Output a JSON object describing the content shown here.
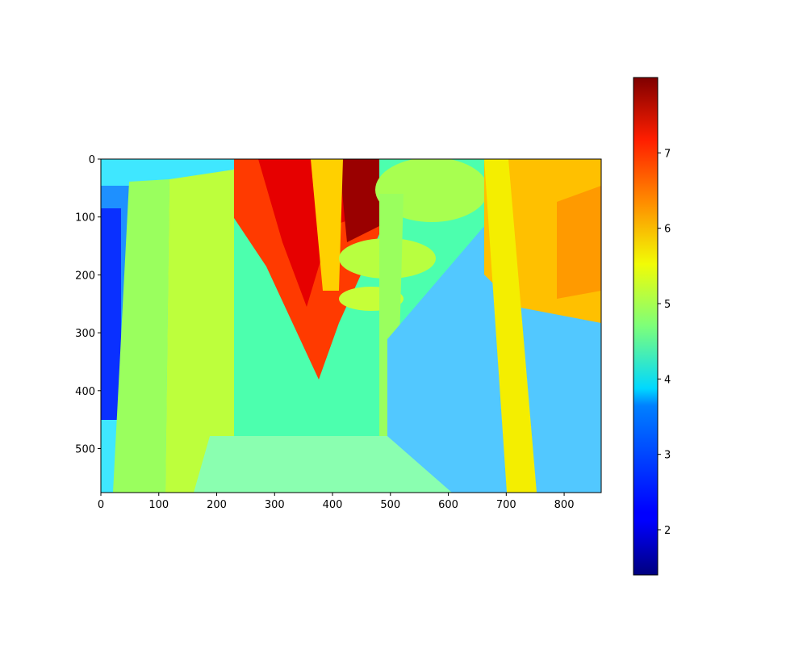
{
  "chart_data": {
    "type": "heatmap",
    "title": "",
    "xlabel": "",
    "ylabel": "",
    "x_range": [
      0,
      864
    ],
    "y_range": [
      0,
      576
    ],
    "y_inverted": true,
    "x_ticks": [
      "0",
      "100",
      "200",
      "300",
      "400",
      "500",
      "600",
      "700",
      "800"
    ],
    "y_ticks": [
      "0",
      "100",
      "200",
      "300",
      "400",
      "500"
    ],
    "colormap": "jet",
    "colorbar": {
      "range": [
        1.4,
        8.0
      ],
      "ticks": [
        "2",
        "3",
        "4",
        "5",
        "6",
        "7"
      ]
    },
    "regions_description_values": {
      "background_level": 4.0,
      "ceiling_level": 7.3,
      "canopy_level": 4.8,
      "column_level": 5.5,
      "window_level": 3.2,
      "left_edge_level": 1.8
    },
    "grid": false
  }
}
